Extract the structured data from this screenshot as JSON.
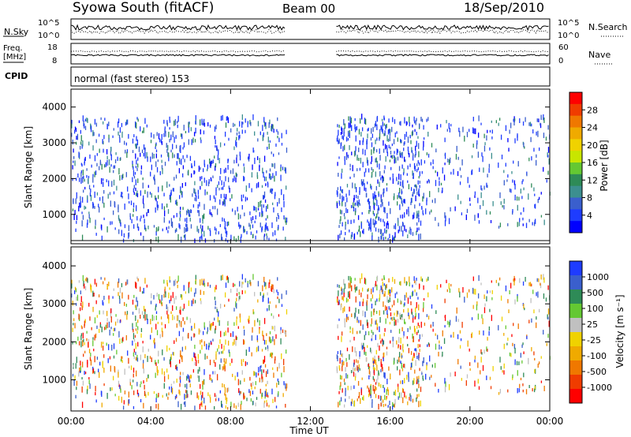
{
  "header": {
    "station": "Syowa South (fitACF)",
    "beam": "Beam 00",
    "date": "18/Sep/2010"
  },
  "noise_panel": {
    "left_label": "N.Sky",
    "right_label": "N.Search",
    "left_ticks": [
      "10^5",
      "10^0"
    ],
    "right_ticks": [
      "10^5",
      "10^0"
    ]
  },
  "freq_panel": {
    "left_label_top": "Freq.",
    "left_label_unit": "[MHz]",
    "right_label": "Nave",
    "left_ticks": [
      "18",
      "8"
    ],
    "right_ticks": [
      "60",
      "0"
    ]
  },
  "cpid_panel": {
    "label": "CPID",
    "text": "normal (fast stereo) 153"
  },
  "power_panel": {
    "ylabel": "Slant Range [km]",
    "y_ticks": [
      "4000",
      "3000",
      "2000",
      "1000"
    ],
    "colorbar_label": "Power [dB]",
    "colorbar_ticks": [
      "28",
      "24",
      "20",
      "16",
      "12",
      "8",
      "4"
    ],
    "colorbar_colors": [
      "#ff0000",
      "#f03c00",
      "#f07800",
      "#f0aa00",
      "#f0d200",
      "#c8e600",
      "#64c832",
      "#2e8b57",
      "#3c8f8f",
      "#3a5fcd",
      "#1e3cff",
      "#0000ff"
    ]
  },
  "velocity_panel": {
    "ylabel": "Slant Range [km]",
    "y_ticks": [
      "4000",
      "3000",
      "2000",
      "1000"
    ],
    "colorbar_label": "Velocity [m s⁻¹]",
    "colorbar_ticks": [
      "1000",
      "500",
      "100",
      "25",
      "-25",
      "-100",
      "-500",
      "-1000"
    ],
    "colorbar_colors": [
      "#1e3cff",
      "#3a5fcd",
      "#2e8b57",
      "#64c832",
      "#c0c0c0",
      "#f0d200",
      "#f0aa00",
      "#f07800",
      "#f03c00",
      "#ff0000"
    ]
  },
  "time_axis": {
    "label": "Time UT",
    "ticks": [
      "00:00",
      "04:00",
      "08:00",
      "12:00",
      "16:00",
      "20:00",
      "00:00"
    ]
  },
  "chart_data": {
    "type": "heatmap",
    "x_range_hours": [
      0,
      24
    ],
    "y_range_km": [
      180,
      4500
    ],
    "data_gap_hours": [
      10.8,
      13.3
    ],
    "scatter_regions": [
      {
        "t0": 0.0,
        "t1": 10.8,
        "r0": 200,
        "r1": 3650
      },
      {
        "t0": 13.3,
        "t1": 17.5,
        "r0": 200,
        "r1": 3650
      },
      {
        "t0": 17.5,
        "t1": 24.0,
        "r0": 600,
        "r1": 3650
      }
    ],
    "power_range_db": [
      3,
      30
    ],
    "velocity_range_ms": [
      -1000,
      1000
    ]
  }
}
